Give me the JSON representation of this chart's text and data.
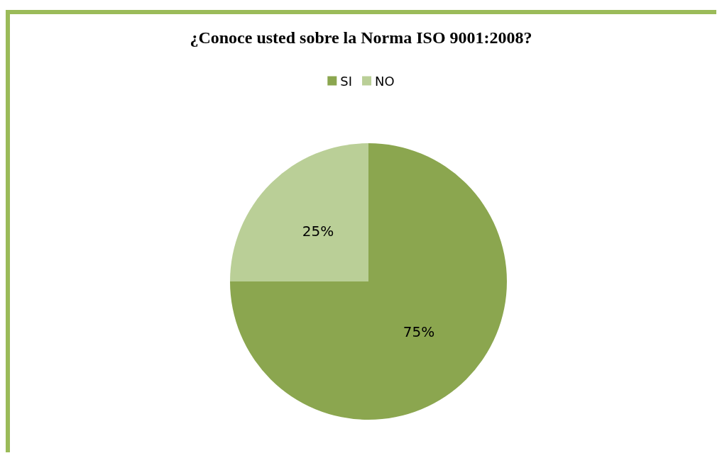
{
  "chart_data": {
    "type": "pie",
    "title": "¿Conoce usted sobre la Norma ISO 9001:2008?",
    "categories": [
      "SI",
      "NO"
    ],
    "values": [
      75,
      25
    ],
    "colors": [
      "#8ba64f",
      "#bacf97"
    ],
    "value_labels": [
      "75%",
      "25%"
    ],
    "legend": "top"
  }
}
